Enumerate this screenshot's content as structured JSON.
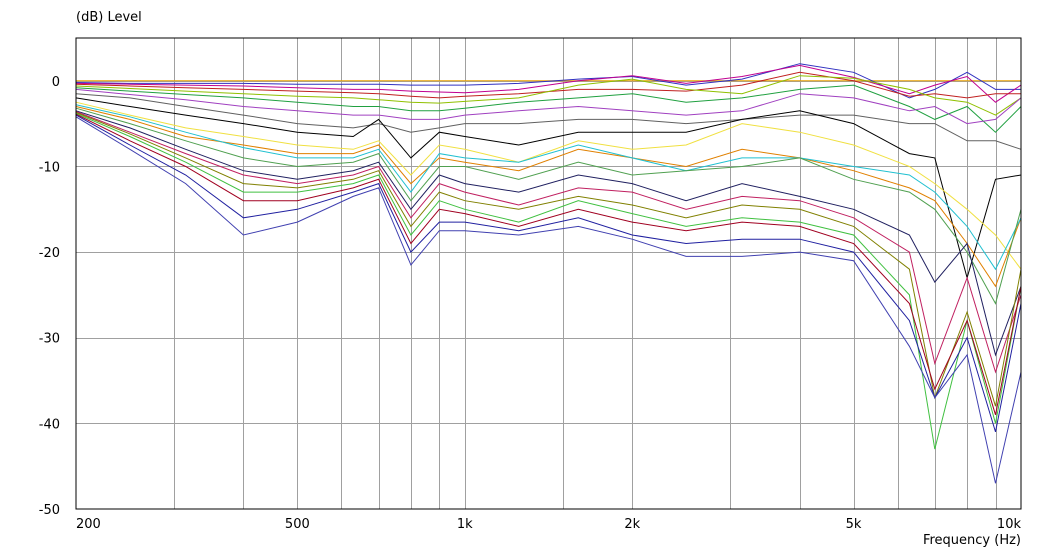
{
  "chart_data": {
    "type": "line",
    "xscale": "log",
    "ylabel": "(dB)  Level",
    "xlabel": "Frequency  (Hz)",
    "xlim": [
      200,
      10000
    ],
    "ylim": [
      -50,
      5
    ],
    "grid": true,
    "x_tick_labels": [
      {
        "value": 200,
        "label": "200"
      },
      {
        "value": 500,
        "label": "500"
      },
      {
        "value": 1000,
        "label": "1k"
      },
      {
        "value": 2000,
        "label": "2k"
      },
      {
        "value": 5000,
        "label": "5k"
      },
      {
        "value": 10000,
        "label": "10k"
      }
    ],
    "x_gridlines": [
      300,
      400,
      500,
      600,
      700,
      800,
      900,
      1000,
      1500,
      2000,
      3000,
      4000,
      5000,
      6000,
      7000,
      8000,
      9000
    ],
    "y_ticks": [
      0,
      -10,
      -20,
      -30,
      -40,
      -50
    ],
    "x": [
      200,
      250,
      315,
      400,
      500,
      630,
      700,
      800,
      900,
      1000,
      1250,
      1600,
      2000,
      2500,
      3150,
      4000,
      5000,
      6300,
      7000,
      8000,
      9000,
      10000
    ],
    "series": [
      {
        "color": "#e8a000",
        "values": [
          0,
          0,
          0,
          0,
          0,
          0,
          0,
          0,
          0,
          0,
          0,
          0,
          0,
          0,
          0,
          0,
          0,
          0,
          0,
          0,
          0,
          0
        ]
      },
      {
        "color": "#3030c0",
        "values": [
          -0.2,
          -0.3,
          -0.3,
          -0.3,
          -0.4,
          -0.4,
          -0.4,
          -0.5,
          -0.5,
          -0.5,
          -0.3,
          0.2,
          0.5,
          -0.5,
          0.2,
          2,
          1,
          -2,
          -1,
          1,
          -1,
          -1
        ]
      },
      {
        "color": "#c00090",
        "values": [
          -0.3,
          -0.4,
          -0.5,
          -0.6,
          -0.8,
          -1,
          -1,
          -1.2,
          -1.3,
          -1.4,
          -1,
          0,
          0.6,
          -0.3,
          0.5,
          1.8,
          0.4,
          -1.5,
          -0.5,
          0.5,
          -2.5,
          -0.5
        ]
      },
      {
        "color": "#c02020",
        "values": [
          -0.4,
          -0.6,
          -0.8,
          -1,
          -1.2,
          -1.4,
          -1.5,
          -1.8,
          -2,
          -1.8,
          -1.5,
          -1,
          -1,
          -1.2,
          -0.5,
          1,
          0,
          -1.8,
          -1.5,
          -2,
          -1.5,
          -1.5
        ]
      },
      {
        "color": "#90c000",
        "values": [
          -0.6,
          -0.9,
          -1.2,
          -1.5,
          -1.8,
          -2,
          -2.2,
          -2.5,
          -2.6,
          -2.4,
          -2,
          -0.5,
          0.2,
          -1,
          -1.5,
          0.6,
          0.3,
          -1,
          -2,
          -2.5,
          -4,
          -2
        ]
      },
      {
        "color": "#20a040",
        "values": [
          -0.8,
          -1.2,
          -1.6,
          -2,
          -2.5,
          -3,
          -3,
          -3.5,
          -3.5,
          -3.2,
          -2.5,
          -2,
          -1.5,
          -2.5,
          -2,
          -1,
          -0.5,
          -3,
          -4.5,
          -3,
          -6,
          -3
        ]
      },
      {
        "color": "#a040c0",
        "values": [
          -1,
          -1.6,
          -2.2,
          -3,
          -3.5,
          -4,
          -4,
          -4.5,
          -4.5,
          -4,
          -3.5,
          -3,
          -3.5,
          -4,
          -3.5,
          -1.5,
          -2,
          -3.5,
          -3,
          -5,
          -4.5,
          -2
        ]
      },
      {
        "color": "#606060",
        "values": [
          -1.5,
          -2,
          -3,
          -4,
          -5,
          -5.5,
          -5,
          -6,
          -5.5,
          -5,
          -5,
          -4.5,
          -4.5,
          -5,
          -4.5,
          -4,
          -4,
          -5,
          -5,
          -7,
          -7,
          -8
        ]
      },
      {
        "color": "#000000",
        "values": [
          -2,
          -3,
          -4,
          -5,
          -6,
          -6.5,
          -4.5,
          -9,
          -6,
          -6.5,
          -7.5,
          -6,
          -6,
          -6,
          -4.5,
          -3.5,
          -5,
          -8.5,
          -9,
          -23,
          -11.5,
          -11
        ]
      },
      {
        "color": "#f0e040",
        "values": [
          -2.5,
          -4,
          -5.5,
          -6.5,
          -7.5,
          -8,
          -7,
          -11,
          -7.5,
          -8,
          -9.5,
          -7,
          -8,
          -7.5,
          -5,
          -6,
          -7.5,
          -10,
          -12,
          -15,
          -18,
          -22
        ]
      },
      {
        "color": "#e08000",
        "values": [
          -3,
          -4.5,
          -6.5,
          -7.5,
          -8.5,
          -8.5,
          -7.5,
          -12,
          -9,
          -9.5,
          -10.5,
          -8,
          -9,
          -10,
          -8,
          -9,
          -10.5,
          -12.5,
          -14,
          -19,
          -24,
          -16
        ]
      },
      {
        "color": "#20c0d0",
        "values": [
          -2.8,
          -4.2,
          -6,
          -7.8,
          -9,
          -9,
          -8,
          -13,
          -8.5,
          -9,
          -9.5,
          -7.5,
          -9,
          -10.5,
          -9,
          -9,
          -10,
          -11,
          -13,
          -17,
          -22,
          -16
        ]
      },
      {
        "color": "#50a050",
        "values": [
          -3.2,
          -5,
          -7,
          -9,
          -10,
          -9.5,
          -8.5,
          -14,
          -10,
          -10,
          -11.5,
          -9.5,
          -11,
          -10.5,
          -10,
          -9,
          -11.5,
          -13,
          -15,
          -20,
          -26,
          -15
        ]
      },
      {
        "color": "#202060",
        "values": [
          -3.5,
          -5.5,
          -8,
          -10.5,
          -11.5,
          -10.5,
          -9.5,
          -15,
          -11,
          -12,
          -13,
          -11,
          -12,
          -14,
          -12,
          -13.5,
          -15,
          -18,
          -23.5,
          -19,
          -32,
          -24
        ]
      },
      {
        "color": "#c02060",
        "values": [
          -3.6,
          -6,
          -8.5,
          -11,
          -12,
          -11,
          -10,
          -16,
          -12,
          -13,
          -14.5,
          -12.5,
          -13,
          -15,
          -13.5,
          -14,
          -16,
          -20,
          -33,
          -23,
          -34,
          -25
        ]
      },
      {
        "color": "#808000",
        "values": [
          -3.7,
          -6.2,
          -9,
          -12,
          -12.5,
          -11.5,
          -10.5,
          -17,
          -13,
          -14,
          -15,
          -13.5,
          -14.5,
          -16,
          -14.5,
          -15,
          -17,
          -22,
          -37,
          -27,
          -38,
          -22
        ]
      },
      {
        "color": "#40c040",
        "values": [
          -3.8,
          -6.5,
          -9.5,
          -13,
          -13,
          -12,
          -11,
          -18,
          -14,
          -15,
          -16.5,
          -14,
          -15.5,
          -17,
          -16,
          -16.5,
          -18,
          -25,
          -43,
          -28,
          -40,
          -24
        ]
      },
      {
        "color": "#a00020",
        "values": [
          -3.9,
          -7,
          -10,
          -14,
          -14,
          -12.5,
          -11.5,
          -19,
          -15,
          -15.5,
          -17,
          -15,
          -16.5,
          -17.5,
          -16.5,
          -17,
          -19,
          -26,
          -36,
          -28,
          -39,
          -24
        ]
      },
      {
        "color": "#2020a0",
        "values": [
          -4,
          -7.5,
          -11,
          -16,
          -15,
          -13,
          -12,
          -20,
          -16.5,
          -16.5,
          -17.5,
          -16,
          -18,
          -19,
          -18.5,
          -18.5,
          -20,
          -28,
          -37,
          -30,
          -41,
          -26
        ]
      },
      {
        "color": "#4040b0",
        "values": [
          -4.2,
          -8,
          -12,
          -18,
          -16.5,
          -13.5,
          -12.5,
          -21.5,
          -17.5,
          -17.5,
          -18,
          -17,
          -18.5,
          -20.5,
          -20.5,
          -20,
          -21,
          -31,
          -37,
          -32,
          -47,
          -34
        ]
      }
    ]
  }
}
